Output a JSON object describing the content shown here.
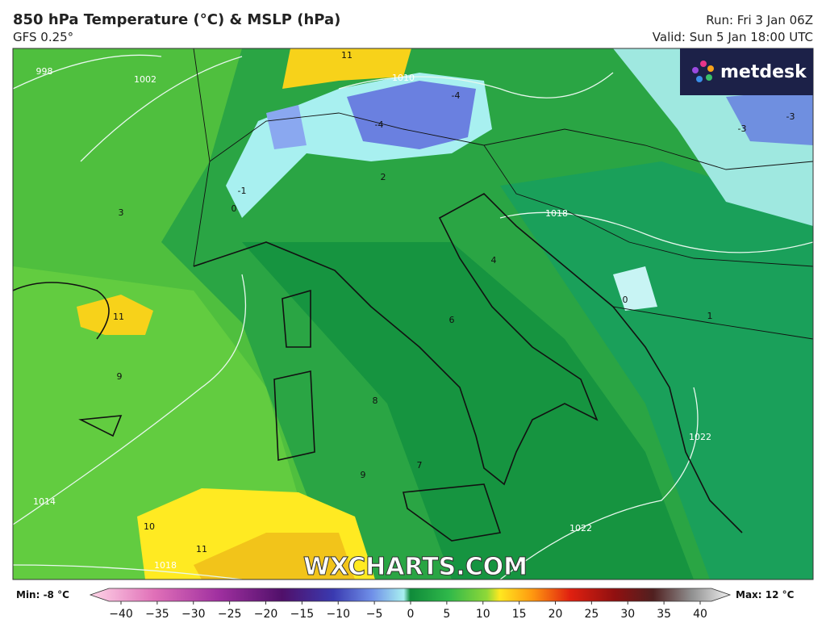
{
  "header": {
    "title": "850 hPa Temperature (°C) & MSLP (hPa)",
    "model": "GFS 0.25°",
    "run": "Run: Fri 3 Jan 06Z",
    "valid": "Valid: Sun 5 Jan 18:00 UTC"
  },
  "logo": "metdesk",
  "watermark": "WXCHARTS.COM",
  "map_labels": [
    "998",
    "1002",
    "1010",
    "1018",
    "1014",
    "1022",
    "1022",
    "1018",
    "11",
    "11",
    "-4",
    "-4",
    "-3",
    "-3",
    "-1",
    "0",
    "2",
    "3",
    "4",
    "6",
    "7",
    "8",
    "9",
    "9",
    "10",
    "11",
    "1",
    "0"
  ],
  "legend": {
    "min": "Min: -8 °C",
    "max": "Max: 12 °C",
    "ticks": [
      "−40",
      "−35",
      "−30",
      "−25",
      "−20",
      "−15",
      "−10",
      "−5",
      "0",
      "5",
      "10",
      "15",
      "20",
      "25",
      "30",
      "35",
      "40"
    ]
  }
}
